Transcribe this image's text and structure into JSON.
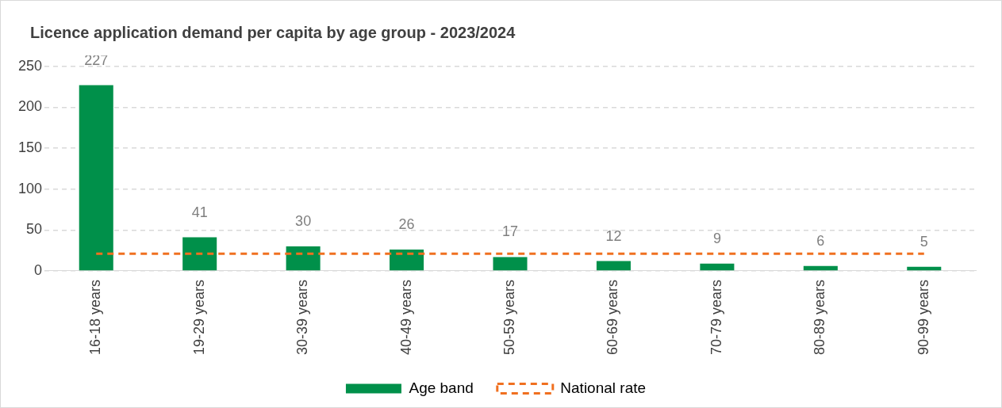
{
  "chart_data": {
    "type": "bar",
    "title": "Licence application demand per capita by age group - 2023/2024",
    "categories": [
      "16-18 years",
      "19-29 years",
      "30-39 years",
      "40-49 years",
      "50-59 years",
      "60-69 years",
      "70-79 years",
      "80-89 years",
      "90-99 years"
    ],
    "series": [
      {
        "name": "Age band",
        "color": "#00904a",
        "values": [
          227,
          41,
          30,
          26,
          17,
          12,
          9,
          6,
          5
        ],
        "value_labels": [
          "227",
          "41",
          "30",
          "26",
          "17",
          "12",
          "9",
          "6",
          "5"
        ]
      },
      {
        "name": "National rate",
        "type": "line",
        "color": "#f07020",
        "line_style": "dashed",
        "marker": "none",
        "values": [
          21,
          21,
          21,
          21,
          21,
          21,
          21,
          21,
          21
        ]
      }
    ],
    "ylim": [
      0,
      250
    ],
    "yticks": [
      0,
      50,
      100,
      150,
      200,
      250
    ],
    "grid": "y",
    "legend": "bottom"
  }
}
